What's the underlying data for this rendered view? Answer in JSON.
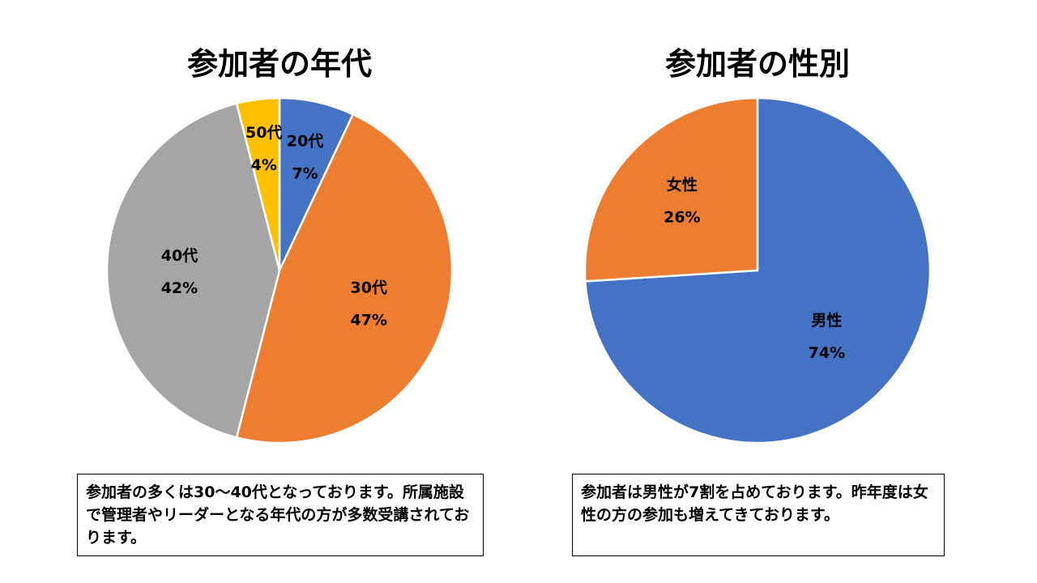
{
  "chart_data": [
    {
      "type": "pie",
      "title": "参加者の年代",
      "slices": [
        {
          "label": "20代",
          "value": 7,
          "color": "#4472C4",
          "display": "7%"
        },
        {
          "label": "30代",
          "value": 47,
          "color": "#ED7D31",
          "display": "47%"
        },
        {
          "label": "40代",
          "value": 42,
          "color": "#A5A5A5",
          "display": "42%"
        },
        {
          "label": "50代",
          "value": 4,
          "color": "#FFC000",
          "display": "4%"
        }
      ]
    },
    {
      "type": "pie",
      "title": "参加者の性別",
      "slices": [
        {
          "label": "男性",
          "value": 74,
          "color": "#4472C4",
          "display": "74%"
        },
        {
          "label": "女性",
          "value": 26,
          "color": "#ED7D31",
          "display": "26%"
        }
      ]
    }
  ],
  "notes": {
    "age": "参加者の多くは30～40代となっております。所属施設で管理者やリーダーとなる年代の方が多数受講されております。",
    "gender": "参加者は男性が7割を占めております。昨年度は女性の方の参加も増えてきております。"
  }
}
